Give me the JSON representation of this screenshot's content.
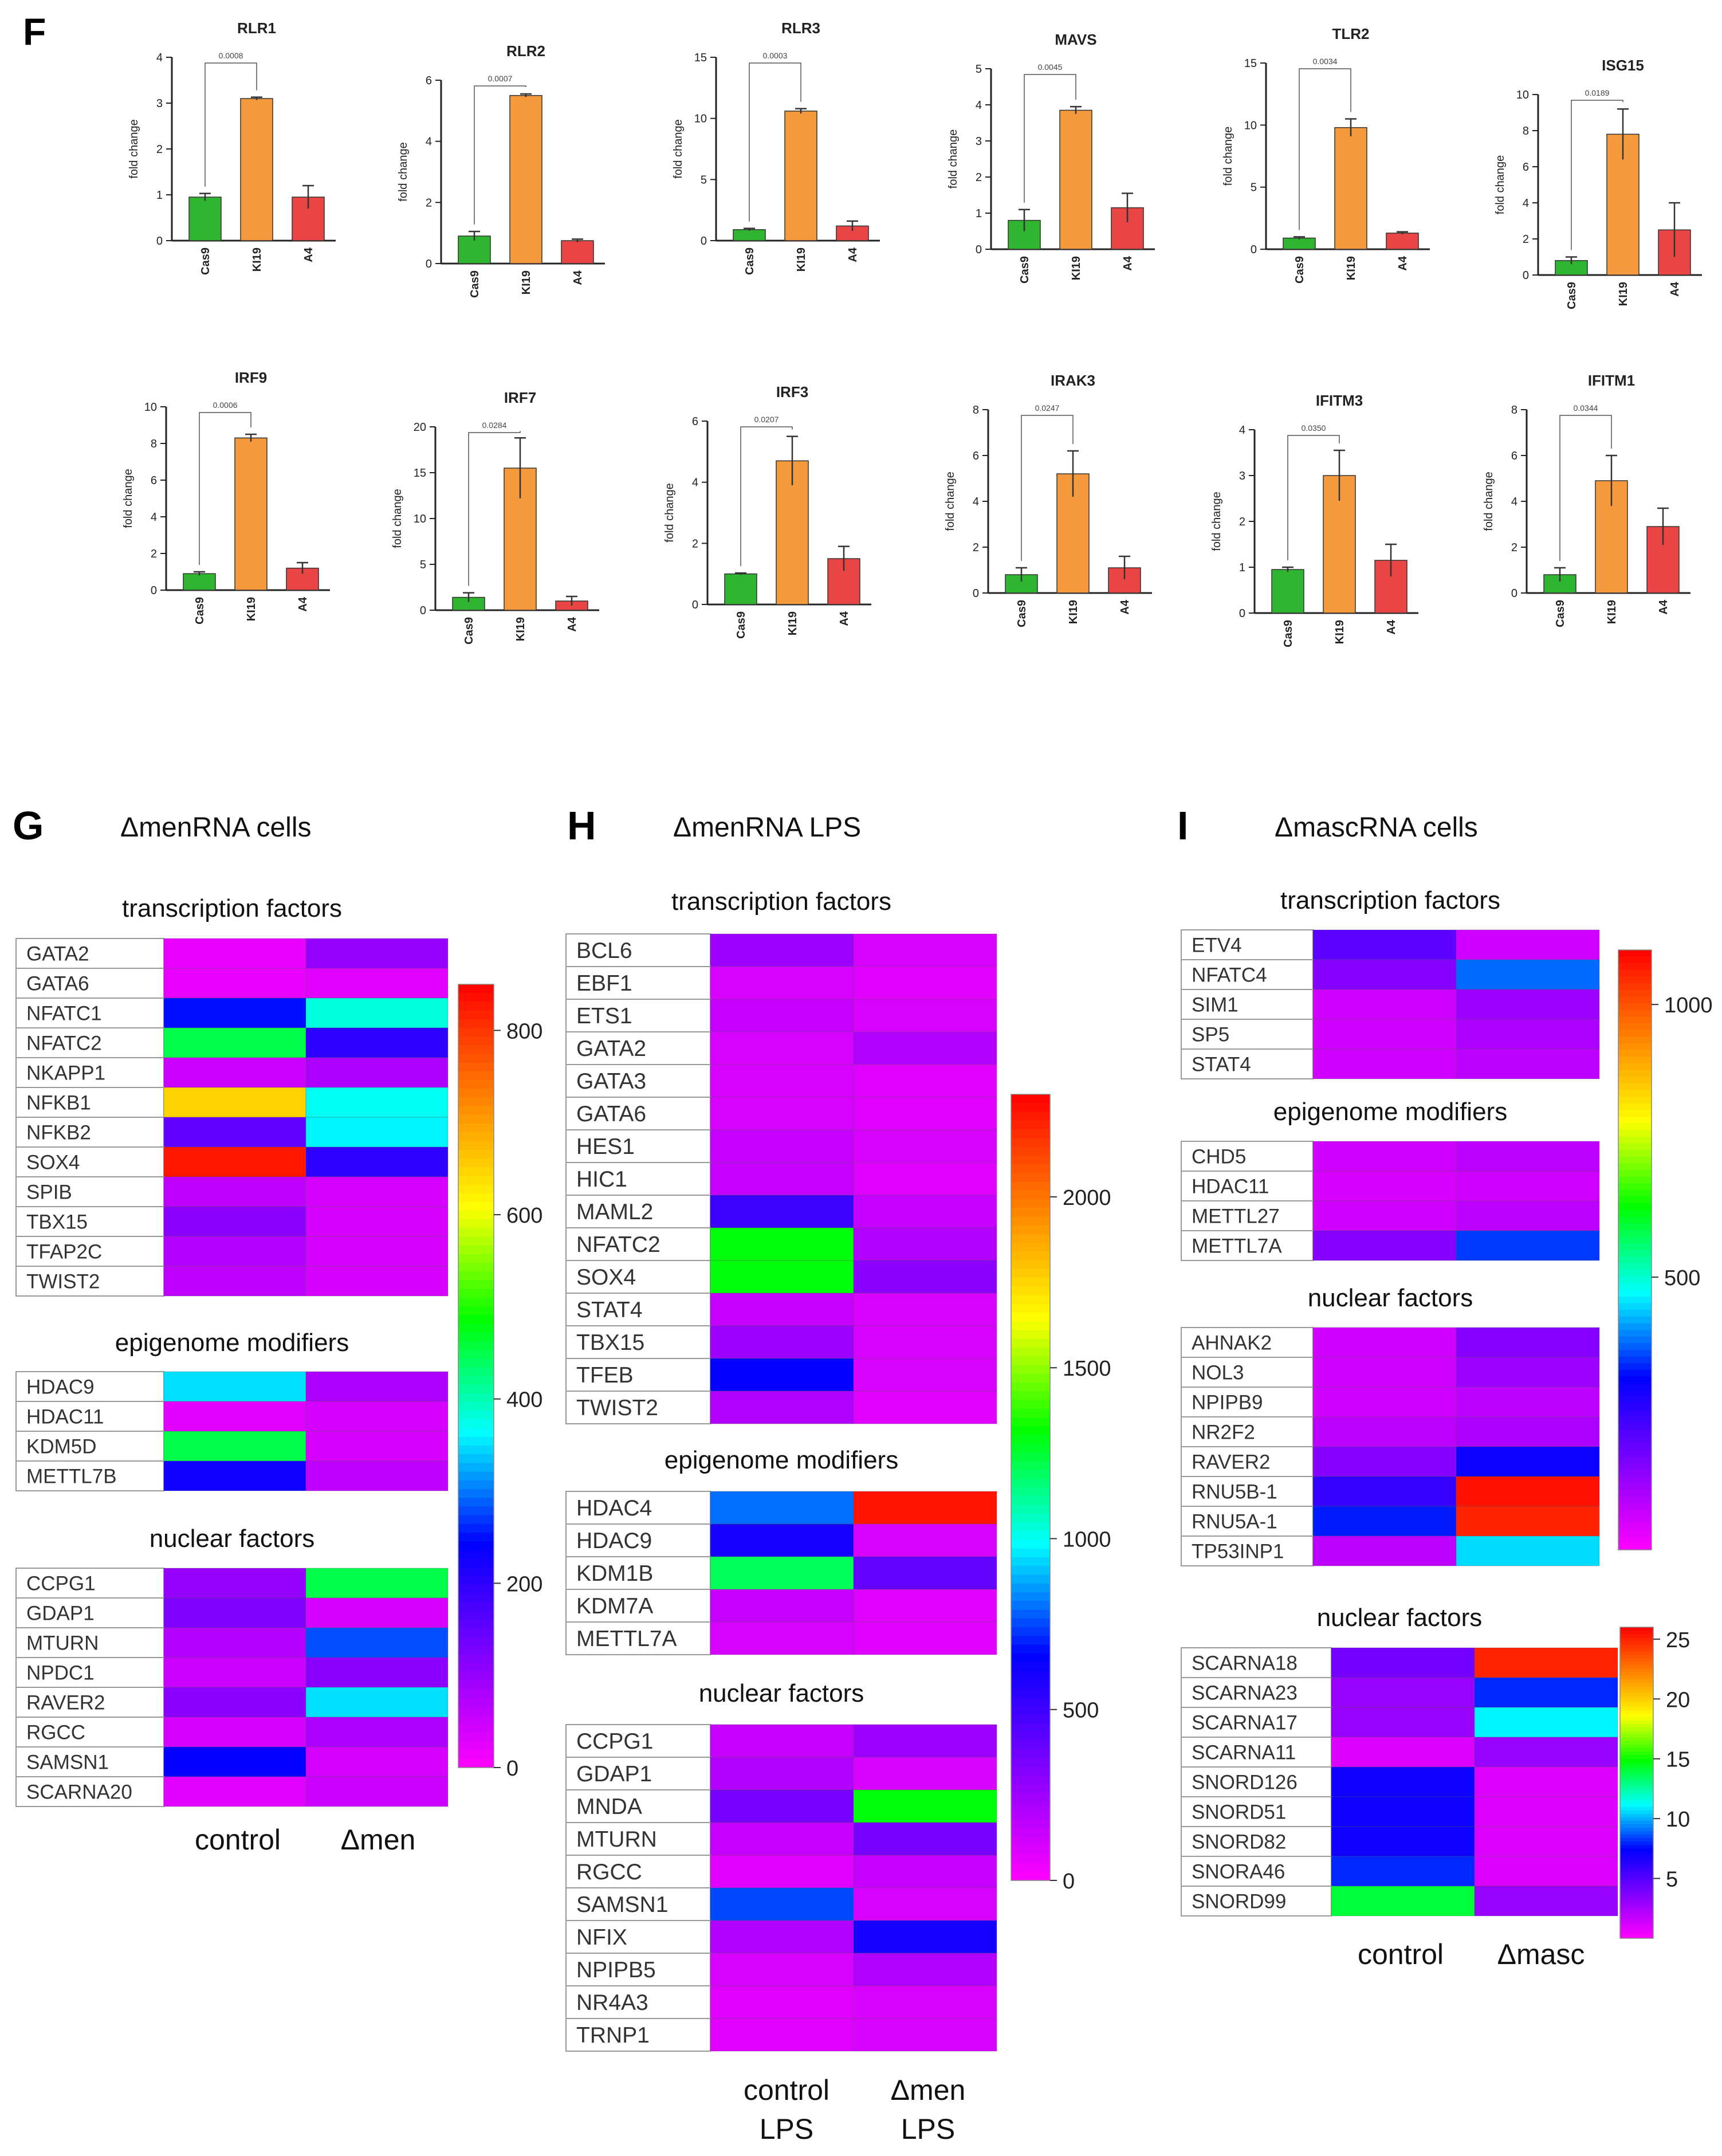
{
  "panel_letters": {
    "f": "F",
    "g": "G",
    "h": "H",
    "i": "I"
  },
  "colors": {
    "cas9": "#2fb52f",
    "ki19": "#f59a3c",
    "a4": "#e94545",
    "cell_border": "#999999",
    "axis": "#222222"
  },
  "colormap": [
    "#ff00ff",
    "#8000ff",
    "#0000ff",
    "#00ffff",
    "#00ff00",
    "#ffff00",
    "#ff8000",
    "#ff0000"
  ],
  "chart_data": [
    {
      "type": "bar",
      "title": "RLR1",
      "ylabel": "fold change",
      "categories": [
        "Cas9",
        "KI19",
        "A4"
      ],
      "values": [
        0.95,
        3.1,
        0.95
      ],
      "errors": [
        0.08,
        0.03,
        0.25
      ],
      "ylim": [
        0,
        4
      ],
      "yticks": [
        0,
        1,
        2,
        3,
        4
      ],
      "p_value": "0.0008"
    },
    {
      "type": "bar",
      "title": "RLR2",
      "ylabel": "fold change",
      "categories": [
        "Cas9",
        "KI19",
        "A4"
      ],
      "values": [
        0.9,
        5.5,
        0.75
      ],
      "errors": [
        0.15,
        0.05,
        0.05
      ],
      "ylim": [
        0,
        6
      ],
      "yticks": [
        0,
        2,
        4,
        6
      ],
      "p_value": "0.0007"
    },
    {
      "type": "bar",
      "title": "RLR3",
      "ylabel": "fold change",
      "categories": [
        "Cas9",
        "KI19",
        "A4"
      ],
      "values": [
        0.9,
        10.6,
        1.2
      ],
      "errors": [
        0.1,
        0.2,
        0.4
      ],
      "ylim": [
        0,
        15
      ],
      "yticks": [
        0,
        5,
        10,
        15
      ],
      "p_value": "0.0003"
    },
    {
      "type": "bar",
      "title": "MAVS",
      "ylabel": "fold change",
      "categories": [
        "Cas9",
        "KI19",
        "A4"
      ],
      "values": [
        0.8,
        3.85,
        1.15
      ],
      "errors": [
        0.3,
        0.1,
        0.4
      ],
      "ylim": [
        0,
        5
      ],
      "yticks": [
        0,
        1,
        2,
        3,
        4,
        5
      ],
      "p_value": "0.0045"
    },
    {
      "type": "bar",
      "title": "TLR2",
      "ylabel": "fold change",
      "categories": [
        "Cas9",
        "KI19",
        "A4"
      ],
      "values": [
        0.9,
        9.8,
        1.3
      ],
      "errors": [
        0.1,
        0.7,
        0.1
      ],
      "ylim": [
        0,
        15
      ],
      "yticks": [
        0,
        5,
        10,
        15
      ],
      "p_value": "0.0034"
    },
    {
      "type": "bar",
      "title": "ISG15",
      "ylabel": "fold change",
      "categories": [
        "Cas9",
        "KI19",
        "A4"
      ],
      "values": [
        0.8,
        7.8,
        2.5
      ],
      "errors": [
        0.2,
        1.4,
        1.5
      ],
      "ylim": [
        0,
        10
      ],
      "yticks": [
        0,
        2,
        4,
        6,
        8,
        10
      ],
      "p_value": "0.0189"
    },
    {
      "type": "bar",
      "title": "IRF9",
      "ylabel": "fold change",
      "categories": [
        "Cas9",
        "KI19",
        "A4"
      ],
      "values": [
        0.9,
        8.3,
        1.2
      ],
      "errors": [
        0.1,
        0.2,
        0.3
      ],
      "ylim": [
        0,
        10
      ],
      "yticks": [
        0,
        2,
        4,
        6,
        8,
        10
      ],
      "p_value": "0.0006"
    },
    {
      "type": "bar",
      "title": "IRF7",
      "ylabel": "fold change",
      "categories": [
        "Cas9",
        "KI19",
        "A4"
      ],
      "values": [
        1.4,
        15.5,
        1.0
      ],
      "errors": [
        0.5,
        3.3,
        0.5
      ],
      "ylim": [
        0,
        20
      ],
      "yticks": [
        0,
        5,
        10,
        15,
        20
      ],
      "p_value": "0.0284"
    },
    {
      "type": "bar",
      "title": "IRF3",
      "ylabel": "fold change",
      "categories": [
        "Cas9",
        "KI19",
        "A4"
      ],
      "values": [
        1.0,
        4.7,
        1.5
      ],
      "errors": [
        0.03,
        0.8,
        0.4
      ],
      "ylim": [
        0,
        6
      ],
      "yticks": [
        0,
        2,
        4,
        6
      ],
      "p_value": "0.0207"
    },
    {
      "type": "bar",
      "title": "IRAK3",
      "ylabel": "fold change",
      "categories": [
        "Cas9",
        "KI19",
        "A4"
      ],
      "values": [
        0.8,
        5.2,
        1.1
      ],
      "errors": [
        0.3,
        1.0,
        0.5
      ],
      "ylim": [
        0,
        8
      ],
      "yticks": [
        0,
        2,
        4,
        6,
        8
      ],
      "p_value": "0.0247"
    },
    {
      "type": "bar",
      "title": "IFITM3",
      "ylabel": "fold change",
      "categories": [
        "Cas9",
        "KI19",
        "A4"
      ],
      "values": [
        0.95,
        3.0,
        1.15
      ],
      "errors": [
        0.05,
        0.55,
        0.35
      ],
      "ylim": [
        0,
        4
      ],
      "yticks": [
        0,
        1,
        2,
        3,
        4
      ],
      "p_value": "0.0350"
    },
    {
      "type": "bar",
      "title": "IFITM1",
      "ylabel": "fold change",
      "categories": [
        "Cas9",
        "KI19",
        "A4"
      ],
      "values": [
        0.8,
        4.9,
        2.9
      ],
      "errors": [
        0.3,
        1.1,
        0.8
      ],
      "ylim": [
        0,
        8
      ],
      "yticks": [
        0,
        2,
        4,
        6,
        8
      ],
      "p_value": "0.0344"
    },
    {
      "type": "heatmap",
      "title": "ΔmenRNA cells",
      "columns": [
        "control",
        "Δmen"
      ],
      "column_labels": [
        [
          "control"
        ],
        [
          "Δmen"
        ]
      ],
      "colorbar": {
        "min": 0,
        "max": 850,
        "ticks": [
          0,
          200,
          400,
          600,
          800
        ]
      },
      "sections": [
        {
          "name": "transcription factors",
          "rows": [
            {
              "gene": "GATA2",
              "values": [
                20,
                100
              ]
            },
            {
              "gene": "GATA6",
              "values": [
                20,
                30
              ]
            },
            {
              "gene": "NFATC1",
              "values": [
                250,
                380
              ]
            },
            {
              "gene": "NFATC2",
              "values": [
                450,
                200
              ]
            },
            {
              "gene": "NKAPP1",
              "values": [
                50,
                80
              ]
            },
            {
              "gene": "NFKB1",
              "values": [
                650,
                370
              ]
            },
            {
              "gene": "NFKB2",
              "values": [
                150,
                360
              ]
            },
            {
              "gene": "SOX4",
              "values": [
                830,
                200
              ]
            },
            {
              "gene": "SPIB",
              "values": [
                60,
                40
              ]
            },
            {
              "gene": "TBX15",
              "values": [
                110,
                40
              ]
            },
            {
              "gene": "TFAP2C",
              "values": [
                70,
                40
              ]
            },
            {
              "gene": "TWIST2",
              "values": [
                60,
                40
              ]
            }
          ]
        },
        {
          "name": "epigenome modifiers",
          "rows": [
            {
              "gene": "HDAC9",
              "values": [
                350,
                80
              ]
            },
            {
              "gene": "HDAC11",
              "values": [
                30,
                40
              ]
            },
            {
              "gene": "KDM5D",
              "values": [
                450,
                40
              ]
            },
            {
              "gene": "METTL7B",
              "values": [
                230,
                60
              ]
            }
          ]
        },
        {
          "name": "nuclear factors",
          "rows": [
            {
              "gene": "CCPG1",
              "values": [
                100,
                450
              ]
            },
            {
              "gene": "GDAP1",
              "values": [
                120,
                40
              ]
            },
            {
              "gene": "MTURN",
              "values": [
                70,
                280
              ]
            },
            {
              "gene": "NPDC1",
              "values": [
                50,
                110
              ]
            },
            {
              "gene": "RAVER2",
              "values": [
                110,
                350
              ]
            },
            {
              "gene": "RGCC",
              "values": [
                40,
                80
              ]
            },
            {
              "gene": "SAMSN1",
              "values": [
                240,
                40
              ]
            },
            {
              "gene": "SCARNA20",
              "values": [
                30,
                50
              ]
            }
          ]
        }
      ]
    },
    {
      "type": "heatmap",
      "title": "ΔmenRNA LPS",
      "columns": [
        "control LPS",
        "Δmen LPS"
      ],
      "column_labels": [
        [
          "control",
          "LPS"
        ],
        [
          "Δmen",
          "LPS"
        ]
      ],
      "colorbar": {
        "min": 0,
        "max": 2300,
        "ticks": [
          0,
          500,
          1000,
          1500,
          2000
        ]
      },
      "sections": [
        {
          "name": "transcription factors",
          "rows": [
            {
              "gene": "BCL6",
              "values": [
                250,
                100
              ]
            },
            {
              "gene": "EBF1",
              "values": [
                100,
                80
              ]
            },
            {
              "gene": "ETS1",
              "values": [
                150,
                100
              ]
            },
            {
              "gene": "GATA2",
              "values": [
                100,
                200
              ]
            },
            {
              "gene": "GATA3",
              "values": [
                100,
                80
              ]
            },
            {
              "gene": "GATA6",
              "values": [
                100,
                80
              ]
            },
            {
              "gene": "HES1",
              "values": [
                150,
                100
              ]
            },
            {
              "gene": "HIC1",
              "values": [
                150,
                80
              ]
            },
            {
              "gene": "MAML2",
              "values": [
                500,
                150
              ]
            },
            {
              "gene": "NFATC2",
              "values": [
                1300,
                200
              ]
            },
            {
              "gene": "SOX4",
              "values": [
                1300,
                300
              ]
            },
            {
              "gene": "STAT4",
              "values": [
                150,
                100
              ]
            },
            {
              "gene": "TBX15",
              "values": [
                250,
                100
              ]
            },
            {
              "gene": "TFEB",
              "values": [
                650,
                100
              ]
            },
            {
              "gene": "TWIST2",
              "values": [
                200,
                80
              ]
            }
          ]
        },
        {
          "name": "epigenome modifiers",
          "rows": [
            {
              "gene": "HDAC4",
              "values": [
                800,
                2250
              ]
            },
            {
              "gene": "HDAC9",
              "values": [
                600,
                100
              ]
            },
            {
              "gene": "KDM1B",
              "values": [
                1200,
                400
              ]
            },
            {
              "gene": "KDM7A",
              "values": [
                150,
                80
              ]
            },
            {
              "gene": "METTL7A",
              "values": [
                100,
                80
              ]
            }
          ]
        },
        {
          "name": "nuclear factors",
          "rows": [
            {
              "gene": "CCPG1",
              "values": [
                150,
                250
              ]
            },
            {
              "gene": "GDAP1",
              "values": [
                200,
                100
              ]
            },
            {
              "gene": "MNDA",
              "values": [
                350,
                1300
              ]
            },
            {
              "gene": "MTURN",
              "values": [
                150,
                350
              ]
            },
            {
              "gene": "RGCC",
              "values": [
                80,
                150
              ]
            },
            {
              "gene": "SAMSN1",
              "values": [
                750,
                100
              ]
            },
            {
              "gene": "NFIX",
              "values": [
                200,
                600
              ]
            },
            {
              "gene": "NPIPB5",
              "values": [
                100,
                200
              ]
            },
            {
              "gene": "NR4A3",
              "values": [
                80,
                100
              ]
            },
            {
              "gene": "TRNP1",
              "values": [
                80,
                100
              ]
            }
          ]
        }
      ]
    },
    {
      "type": "heatmap",
      "title": "ΔmascRNA cells",
      "columns": [
        "control",
        "Δmasc"
      ],
      "column_labels": [
        [
          "control"
        ],
        [
          "Δmasc"
        ]
      ],
      "colorbar": {
        "min": 0,
        "max": 1100,
        "ticks": [
          500,
          1000
        ]
      },
      "sections": [
        {
          "name": "transcription factors",
          "rows": [
            {
              "gene": "ETV4",
              "values": [
                200,
                60
              ]
            },
            {
              "gene": "NFATC4",
              "values": [
                150,
                380
              ]
            },
            {
              "gene": "SIM1",
              "values": [
                60,
                120
              ]
            },
            {
              "gene": "SP5",
              "values": [
                60,
                100
              ]
            },
            {
              "gene": "STAT4",
              "values": [
                60,
                80
              ]
            }
          ]
        },
        {
          "name": "epigenome modifiers",
          "rows": [
            {
              "gene": "CHD5",
              "values": [
                60,
                80
              ]
            },
            {
              "gene": "HDAC11",
              "values": [
                50,
                60
              ]
            },
            {
              "gene": "METTL27",
              "values": [
                60,
                80
              ]
            },
            {
              "gene": "METTL7A",
              "values": [
                150,
                350
              ]
            }
          ]
        },
        {
          "name": "nuclear factors",
          "rows": [
            {
              "gene": "AHNAK2",
              "values": [
                60,
                150
              ]
            },
            {
              "gene": "NOL3",
              "values": [
                60,
                120
              ]
            },
            {
              "gene": "NPIPB9",
              "values": [
                60,
                80
              ]
            },
            {
              "gene": "NR2F2",
              "values": [
                80,
                100
              ]
            },
            {
              "gene": "RAVER2",
              "values": [
                150,
                300
              ]
            },
            {
              "gene": "RNU5B-1",
              "values": [
                250,
                1080
              ]
            },
            {
              "gene": "RNU5A-1",
              "values": [
                330,
                1060
              ]
            },
            {
              "gene": "TP53INP1",
              "values": [
                80,
                450
              ]
            }
          ]
        }
      ]
    },
    {
      "type": "heatmap",
      "title": "nuclear factors",
      "columns": [
        "control",
        "Δmasc"
      ],
      "column_labels": [
        [
          "control"
        ],
        [
          "Δmasc"
        ]
      ],
      "colorbar": {
        "min": 0,
        "max": 26,
        "ticks": [
          5,
          10,
          15,
          20,
          25
        ]
      },
      "sections": [
        {
          "name": "nuclear factors",
          "rows": [
            {
              "gene": "SCARNA18",
              "values": [
                4,
                25
              ]
            },
            {
              "gene": "SCARNA23",
              "values": [
                3,
                8
              ]
            },
            {
              "gene": "SCARNA17",
              "values": [
                3,
                11
              ]
            },
            {
              "gene": "SCARNA11",
              "values": [
                1,
                3
              ]
            },
            {
              "gene": "SNORD126",
              "values": [
                7,
                1
              ]
            },
            {
              "gene": "SNORD51",
              "values": [
                7,
                1
              ]
            },
            {
              "gene": "SNORD82",
              "values": [
                7,
                1
              ]
            },
            {
              "gene": "SNORA46",
              "values": [
                8,
                1
              ]
            },
            {
              "gene": "SNORD99",
              "values": [
                14,
                3
              ]
            }
          ]
        }
      ]
    }
  ]
}
